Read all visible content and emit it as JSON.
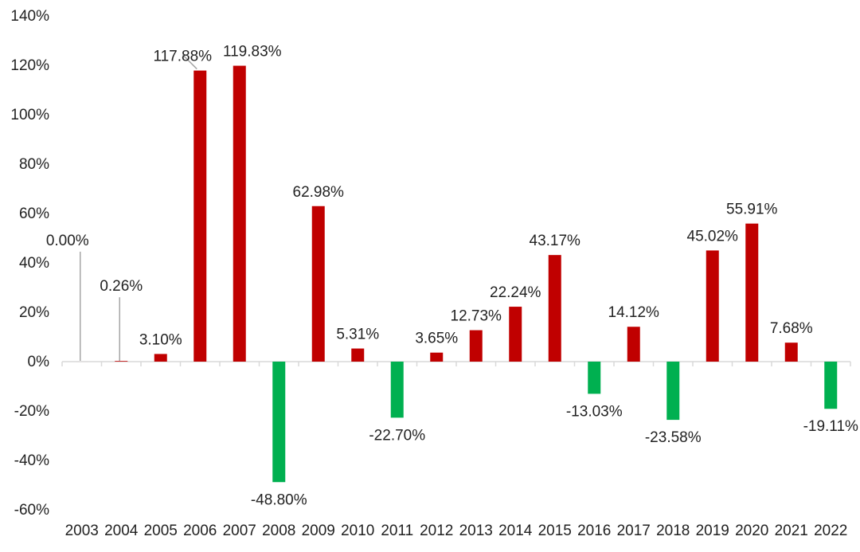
{
  "chart_data": {
    "type": "bar",
    "title": "",
    "xlabel": "",
    "ylabel": "",
    "categories": [
      "2003",
      "2004",
      "2005",
      "2006",
      "2007",
      "2008",
      "2009",
      "2010",
      "2011",
      "2012",
      "2013",
      "2014",
      "2015",
      "2016",
      "2017",
      "2018",
      "2019",
      "2020",
      "2021",
      "2022"
    ],
    "values": [
      0.0,
      0.26,
      3.1,
      117.88,
      119.83,
      -48.8,
      62.98,
      5.31,
      -22.7,
      3.65,
      12.73,
      22.24,
      43.17,
      -13.03,
      14.12,
      -23.58,
      45.02,
      55.91,
      7.68,
      -19.11
    ],
    "data_labels": [
      "0.00%",
      "0.26%",
      "3.10%",
      "117.88%",
      "119.83%",
      "-48.80%",
      "62.98%",
      "5.31%",
      "-22.70%",
      "3.65%",
      "12.73%",
      "22.24%",
      "43.17%",
      "-13.03%",
      "14.12%",
      "-23.58%",
      "45.02%",
      "55.91%",
      "7.68%",
      "-19.11%"
    ],
    "ylim": [
      -60,
      140
    ],
    "yticks": [
      -60,
      -40,
      -20,
      0,
      20,
      40,
      60,
      80,
      100,
      120,
      140
    ],
    "ytick_labels": [
      "-60%",
      "-40%",
      "-20%",
      "0%",
      "20%",
      "40%",
      "60%",
      "80%",
      "100%",
      "120%",
      "140%"
    ],
    "grid": false,
    "legend": "none",
    "colors": {
      "positive": "#c00000",
      "negative": "#00b050",
      "axis": "#d9d9d9",
      "leader": "#a6a6a6"
    }
  }
}
